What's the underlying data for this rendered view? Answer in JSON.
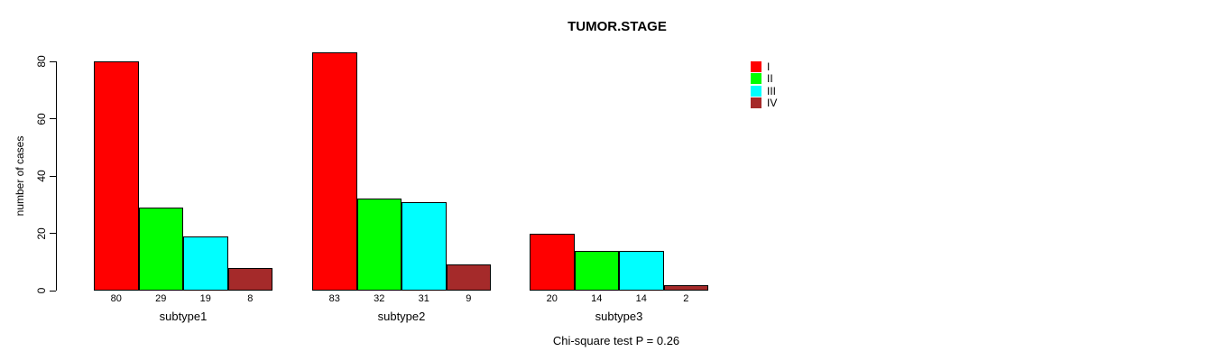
{
  "title": "TUMOR.STAGE",
  "y_axis": {
    "label": "number of cases",
    "ticks": [
      0,
      20,
      40,
      60,
      80
    ],
    "range": [
      0,
      80
    ]
  },
  "legend": {
    "position": "right",
    "entries": [
      {
        "label": "I",
        "color": "#FF0000"
      },
      {
        "label": "II",
        "color": "#00FF00"
      },
      {
        "label": "III",
        "color": "#00FFFF"
      },
      {
        "label": "IV",
        "color": "#A52A2A"
      }
    ]
  },
  "footer": "Chi-square test P = 0.26",
  "chart_data": {
    "type": "bar",
    "title": "TUMOR.STAGE",
    "xlabel": "",
    "ylabel": "number of cases",
    "ylim": [
      0,
      80
    ],
    "yticks": [
      0,
      20,
      40,
      60,
      80
    ],
    "grid": false,
    "legend_position": "right",
    "annotation": "Chi-square test P = 0.26",
    "categories": [
      "subtype1",
      "subtype2",
      "subtype3"
    ],
    "series": [
      {
        "name": "I",
        "color": "#FF0000",
        "values": [
          80,
          83,
          20
        ]
      },
      {
        "name": "II",
        "color": "#00FF00",
        "values": [
          29,
          32,
          14
        ]
      },
      {
        "name": "III",
        "color": "#00FFFF",
        "values": [
          19,
          31,
          14
        ]
      },
      {
        "name": "IV",
        "color": "#A52A2A",
        "values": [
          8,
          9,
          2
        ]
      }
    ],
    "bar_value_labels": [
      [
        80,
        29,
        19,
        8
      ],
      [
        83,
        32,
        31,
        9
      ],
      [
        20,
        14,
        14,
        2
      ]
    ]
  }
}
